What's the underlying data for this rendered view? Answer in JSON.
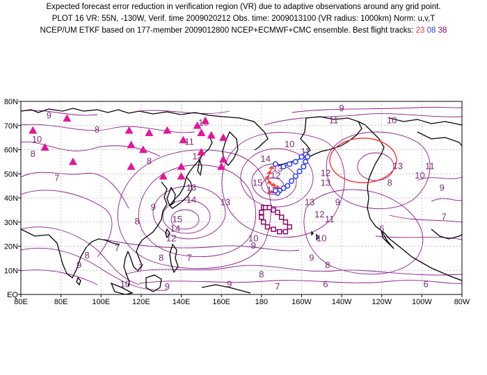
{
  "title": {
    "line1": "Expected forecast error reduction in verification region (VR) due to adaptive observations around any grid point.",
    "line2": "PLOT 16 VR: 55N, -130W, Verif. time 2009020212 Obs. time: 2009013100 (VR radius: 1000km) Norm: u,v,T",
    "line3_prefix": "NCEP/UM ETKF based on 177-member 2009012800 NCEP+ECMWF+CMC ensemble. Best flight tracks:",
    "tracks": [
      "23",
      "08",
      "38"
    ]
  },
  "axes": {
    "x_ticks": [
      "80E",
      "80E",
      "100E",
      "120E",
      "140E",
      "160E",
      "180",
      "160W",
      "140W",
      "120W",
      "100W",
      "80W"
    ],
    "y_ticks": [
      "EQ",
      "10N",
      "20N",
      "30N",
      "40N",
      "50N",
      "60N",
      "70N",
      "80N"
    ]
  },
  "verification_region": {
    "center_lat": 55,
    "center_lon": -130,
    "radius_km": 1000
  },
  "contour_labels": [
    {
      "text": "9",
      "lon": 74,
      "lat": 73
    },
    {
      "text": "8",
      "lon": 98,
      "lat": 67
    },
    {
      "text": "10",
      "lon": 68,
      "lat": 63
    },
    {
      "text": "8",
      "lon": 66,
      "lat": 57
    },
    {
      "text": "7",
      "lon": 78,
      "lat": 47
    },
    {
      "text": "8",
      "lon": 124,
      "lat": 54
    },
    {
      "text": "10",
      "lon": 151,
      "lat": 70
    },
    {
      "text": "11",
      "lon": 144,
      "lat": 62
    },
    {
      "text": "12",
      "lon": 148,
      "lat": 56
    },
    {
      "text": "13",
      "lon": 145,
      "lat": 43
    },
    {
      "text": "14",
      "lon": 145,
      "lat": 38
    },
    {
      "text": "13",
      "lon": 162,
      "lat": 37
    },
    {
      "text": "15",
      "lon": 138,
      "lat": 30
    },
    {
      "text": "14",
      "lon": 137,
      "lat": 26
    },
    {
      "text": "12",
      "lon": 135,
      "lat": 22
    },
    {
      "text": "9",
      "lon": 126,
      "lat": 35
    },
    {
      "text": "8",
      "lon": 118,
      "lat": 29
    },
    {
      "text": "10",
      "lon": 176,
      "lat": 22
    },
    {
      "text": "9",
      "lon": 176,
      "lat": 19
    },
    {
      "text": "7",
      "lon": 108,
      "lat": 18
    },
    {
      "text": "8",
      "lon": 93,
      "lat": 15
    },
    {
      "text": "9",
      "lon": 89,
      "lat": 11
    },
    {
      "text": "7",
      "lon": 120,
      "lat": 10
    },
    {
      "text": "8",
      "lon": 130,
      "lat": 14
    },
    {
      "text": "7",
      "lon": 144,
      "lat": 14
    },
    {
      "text": "9",
      "lon": 133,
      "lat": 2
    },
    {
      "text": "10",
      "lon": 112,
      "lat": 3
    },
    {
      "text": "9",
      "lon": 164,
      "lat": 3
    },
    {
      "text": "8",
      "lon": 180,
      "lat": 7
    },
    {
      "text": "7",
      "lon": 188,
      "lat": 2
    },
    {
      "text": "9",
      "lon": 205,
      "lat": 14
    },
    {
      "text": "8",
      "lon": 213,
      "lat": 11
    },
    {
      "text": "6",
      "lon": 212,
      "lat": 3
    },
    {
      "text": "10",
      "lon": 210,
      "lat": 22
    },
    {
      "text": "9",
      "lon": 218,
      "lat": 37
    },
    {
      "text": "11",
      "lon": 214,
      "lat": 30
    },
    {
      "text": "12",
      "lon": 209,
      "lat": 32
    },
    {
      "text": "13",
      "lon": 204,
      "lat": 37
    },
    {
      "text": "15",
      "lon": 178,
      "lat": 45
    },
    {
      "text": "14",
      "lon": 182,
      "lat": 55
    },
    {
      "text": "13",
      "lon": 188,
      "lat": 51
    },
    {
      "text": "12",
      "lon": 187,
      "lat": 48
    },
    {
      "text": "11",
      "lon": 185,
      "lat": 42
    },
    {
      "text": "10",
      "lon": 194,
      "lat": 61
    },
    {
      "text": "11",
      "lon": 202,
      "lat": 58
    },
    {
      "text": "12",
      "lon": 212,
      "lat": 49
    },
    {
      "text": "13",
      "lon": 212,
      "lat": 45
    },
    {
      "text": "11",
      "lon": 216,
      "lat": 71
    },
    {
      "text": "9",
      "lon": 220,
      "lat": 76
    },
    {
      "text": "10",
      "lon": 245,
      "lat": 71
    },
    {
      "text": "13",
      "lon": 248,
      "lat": 52
    },
    {
      "text": "10",
      "lon": 259,
      "lat": 48
    },
    {
      "text": "11",
      "lon": 264,
      "lat": 52
    },
    {
      "text": "8",
      "lon": 244,
      "lat": 45
    },
    {
      "text": "9",
      "lon": 270,
      "lat": 43
    },
    {
      "text": "7",
      "lon": 271,
      "lat": 31
    },
    {
      "text": "6",
      "lon": 240,
      "lat": 26
    },
    {
      "text": "6",
      "lon": 262,
      "lat": 3
    }
  ],
  "triangles": [
    {
      "lon": 83,
      "lat": 73
    },
    {
      "lon": 66,
      "lat": 68
    },
    {
      "lon": 72,
      "lat": 61
    },
    {
      "lon": 86,
      "lat": 55
    },
    {
      "lon": 114,
      "lat": 68
    },
    {
      "lon": 115,
      "lat": 62
    },
    {
      "lon": 115,
      "lat": 53
    },
    {
      "lon": 121,
      "lat": 60
    },
    {
      "lon": 124,
      "lat": 67
    },
    {
      "lon": 133,
      "lat": 68
    },
    {
      "lon": 131,
      "lat": 49
    },
    {
      "lon": 140,
      "lat": 53
    },
    {
      "lon": 140,
      "lat": 49
    },
    {
      "lon": 141,
      "lat": 64
    },
    {
      "lon": 148,
      "lat": 70
    },
    {
      "lon": 150,
      "lat": 67
    },
    {
      "lon": 150,
      "lat": 59
    },
    {
      "lon": 155,
      "lat": 66
    },
    {
      "lon": 161,
      "lat": 65
    },
    {
      "lon": 160,
      "lat": 53
    },
    {
      "lon": 161,
      "lat": 56
    },
    {
      "lon": 152,
      "lat": 72
    }
  ],
  "track_23": [
    [
      187,
      54
    ],
    [
      185,
      52
    ],
    [
      184,
      50
    ],
    [
      183,
      48
    ],
    [
      184,
      46
    ],
    [
      186,
      45
    ],
    [
      188,
      44
    ],
    [
      187,
      43
    ],
    [
      185,
      42
    ]
  ],
  "track_08": [
    [
      187,
      54
    ],
    [
      191,
      53
    ],
    [
      194,
      54
    ],
    [
      197,
      55
    ],
    [
      200,
      57
    ],
    [
      202,
      58
    ],
    [
      203,
      57
    ],
    [
      202,
      55
    ],
    [
      201,
      53
    ],
    [
      199,
      51
    ],
    [
      197,
      49
    ],
    [
      195,
      47
    ],
    [
      193,
      45
    ],
    [
      191,
      44
    ],
    [
      189,
      43
    ],
    [
      188,
      42
    ],
    [
      187,
      43
    ]
  ],
  "track_38": [
    [
      181,
      36
    ],
    [
      182,
      36
    ],
    [
      184,
      36
    ],
    [
      186,
      35
    ],
    [
      188,
      34
    ],
    [
      190,
      32
    ],
    [
      192,
      30
    ],
    [
      194,
      28
    ],
    [
      192,
      26
    ],
    [
      189,
      26
    ],
    [
      186,
      27
    ],
    [
      183,
      28
    ],
    [
      181,
      30
    ],
    [
      180,
      32
    ],
    [
      180,
      34
    ]
  ]
}
